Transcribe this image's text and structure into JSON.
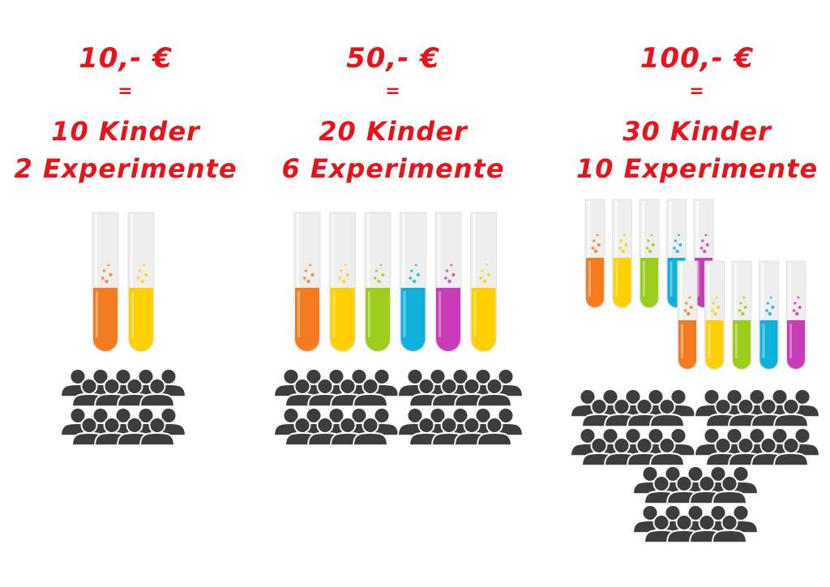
{
  "tiers": [
    {
      "price": "10,- €",
      "equals": "=",
      "kids": "10 Kinder",
      "experiments": "2 Experimente",
      "tube_colors": [
        "orange",
        "yellow"
      ],
      "people_groups": 1
    },
    {
      "price": "50,- €",
      "equals": "=",
      "kids": "20 Kinder",
      "experiments": "6 Experimente",
      "tube_colors": [
        "orange",
        "yellow",
        "green",
        "blue",
        "purple",
        "yellow"
      ],
      "people_groups": 2
    },
    {
      "price": "100,- €",
      "equals": "=",
      "kids": "30 Kinder",
      "experiments": "10 Experimente",
      "tube_colors": [
        "orange",
        "yellow",
        "green",
        "blue",
        "purple",
        "orange",
        "yellow",
        "green",
        "blue",
        "purple"
      ],
      "people_groups": 3
    }
  ],
  "colors": {
    "heading": "#e8141b",
    "people": "#3d3d3d",
    "tube_glass": "#eeeeee",
    "orange": "#f47b20",
    "yellow": "#ffd000",
    "green": "#9ccc1c",
    "blue": "#10b0dc",
    "purple": "#c83cb8"
  },
  "icons": {
    "tube": "test-tube-icon",
    "people": "people-group-icon"
  }
}
